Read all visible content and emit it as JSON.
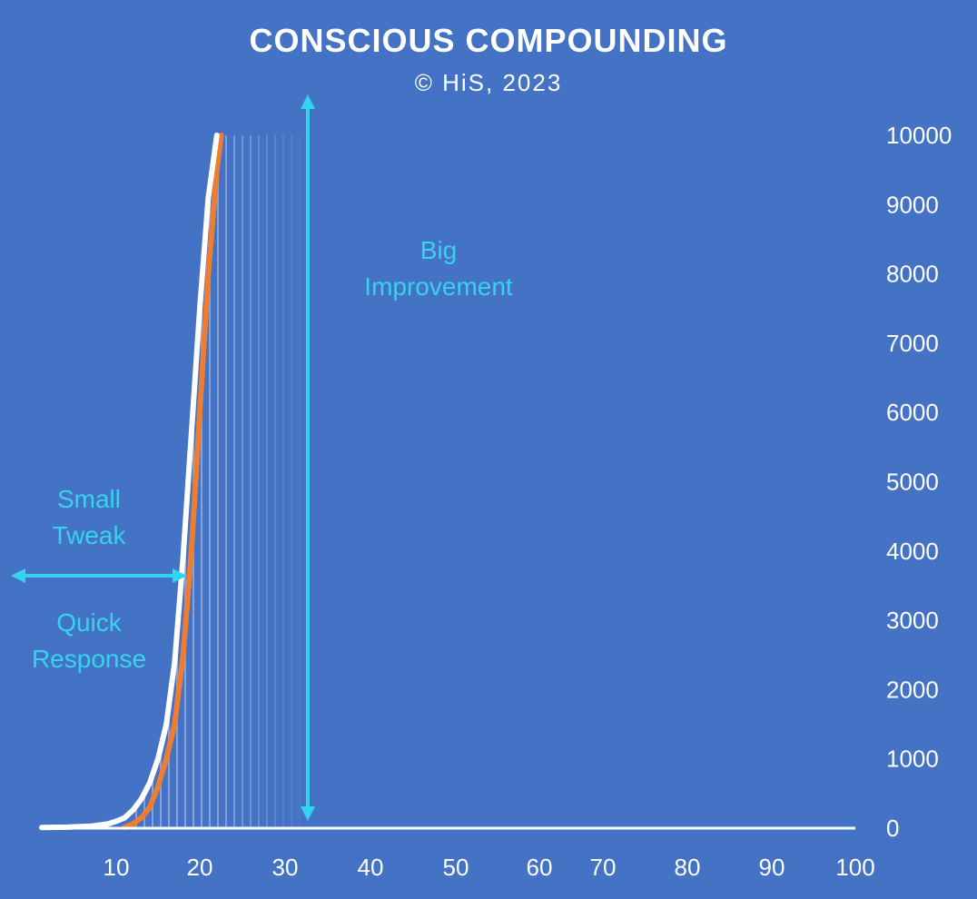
{
  "colors": {
    "background": "#4472C4",
    "accent": "#36D3EE",
    "series_a": "#ffffff",
    "series_b": "#ED7D31"
  },
  "chart_data": {
    "type": "line",
    "title": "CONSCIOUS COMPOUNDING",
    "subtitle": "© HiS, 2023",
    "x_ticks": [
      10,
      20,
      30,
      40,
      50,
      60,
      70,
      80,
      90,
      100
    ],
    "y_ticks": [
      0,
      1000,
      2000,
      3000,
      4000,
      5000,
      6000,
      7000,
      8000,
      9000,
      10000
    ],
    "ylim": [
      0,
      10000
    ],
    "y_axis_position": "right",
    "series": [
      {
        "color": "#ffffff",
        "x": [
          1,
          4,
          7,
          9,
          10,
          11,
          12,
          13,
          14,
          15,
          16,
          17,
          18,
          19,
          20,
          21,
          22
        ],
        "y": [
          10,
          15,
          30,
          60,
          100,
          150,
          260,
          420,
          650,
          1000,
          1500,
          2400,
          3900,
          5700,
          7500,
          9100,
          10000
        ]
      },
      {
        "color": "#ED7D31",
        "x": [
          11,
          12,
          13,
          14,
          15,
          16,
          17,
          18,
          19,
          20,
          21,
          22,
          22.5
        ],
        "y": [
          10,
          60,
          150,
          300,
          600,
          1000,
          1500,
          2500,
          4000,
          6000,
          8000,
          9500,
          10000
        ]
      }
    ],
    "annotations": {
      "horizontal": [
        "Small",
        "Tweak",
        "Quick",
        "Response"
      ],
      "vertical": [
        "Big",
        "Improvement"
      ]
    }
  }
}
